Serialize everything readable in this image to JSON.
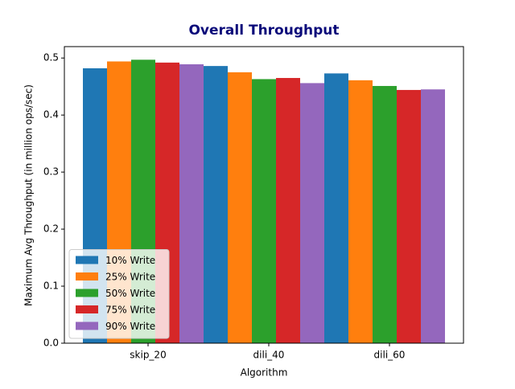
{
  "chart_data": {
    "type": "bar",
    "title": "Overall Throughput",
    "x_label": "Algorithm",
    "y_label": "Maximum Avg Throughput (in million ops/sec)",
    "categories": [
      "skip_20",
      "dili_40",
      "dili_60"
    ],
    "series": [
      {
        "name": "10% Write",
        "color": "#1f77b4",
        "values": [
          0.482,
          0.486,
          0.473
        ]
      },
      {
        "name": "25% Write",
        "color": "#ff7f0e",
        "values": [
          0.494,
          0.475,
          0.461
        ]
      },
      {
        "name": "50% Write",
        "color": "#2ca02c",
        "values": [
          0.497,
          0.463,
          0.451
        ]
      },
      {
        "name": "75% Write",
        "color": "#d62728",
        "values": [
          0.492,
          0.465,
          0.444
        ]
      },
      {
        "name": "90% Write",
        "color": "#9467bd",
        "values": [
          0.489,
          0.456,
          0.445
        ]
      }
    ],
    "ylim": [
      0,
      0.52
    ],
    "yticks": [
      {
        "value": 0,
        "label": "0.0"
      },
      0.1,
      0.2,
      0.3,
      0.4,
      0.5
    ],
    "legend": "lower left"
  }
}
